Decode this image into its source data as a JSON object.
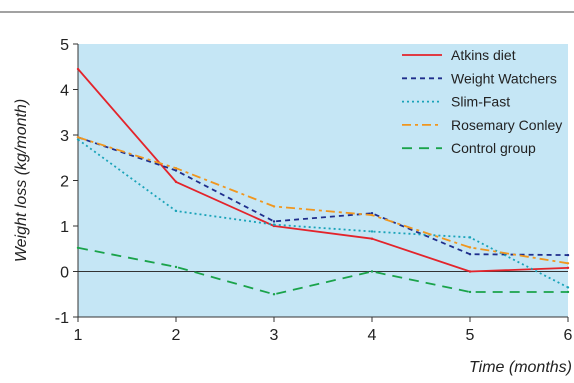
{
  "chart_data": {
    "type": "line",
    "x": [
      1,
      2,
      3,
      4,
      5,
      6
    ],
    "series": [
      {
        "name": "Atkins diet",
        "values": [
          4.45,
          1.97,
          1.0,
          0.72,
          0.0,
          0.08
        ],
        "color": "#e3242b",
        "dash": "solid"
      },
      {
        "name": "Weight Watchers",
        "values": [
          2.95,
          2.22,
          1.1,
          1.28,
          0.38,
          0.36
        ],
        "color": "#1f2e8c",
        "dash": "dashed"
      },
      {
        "name": "Slim-Fast",
        "values": [
          2.9,
          1.33,
          1.03,
          0.88,
          0.75,
          -0.35
        ],
        "color": "#1aa3b8",
        "dash": "dotted"
      },
      {
        "name": "Rosemary Conley",
        "values": [
          2.95,
          2.27,
          1.43,
          1.24,
          0.53,
          0.18
        ],
        "color": "#f0961e",
        "dash": "dash-dot"
      },
      {
        "name": "Control group",
        "values": [
          0.52,
          0.1,
          -0.5,
          0.0,
          -0.45,
          -0.45
        ],
        "color": "#1aa34a",
        "dash": "long-dash"
      }
    ],
    "xlabel": "Time (months)",
    "ylabel": "Weight loss (kg/month)",
    "xlim": [
      1,
      6
    ],
    "ylim": [
      -1,
      5
    ],
    "xticks": [
      "1",
      "2",
      "3",
      "4",
      "5",
      "6"
    ],
    "yticks": [
      "-1",
      "0",
      "1",
      "2",
      "3",
      "4",
      "5"
    ],
    "grid": false,
    "zero_line": true,
    "legend_position": "top-right",
    "plot_background": "#c5e6f5"
  }
}
